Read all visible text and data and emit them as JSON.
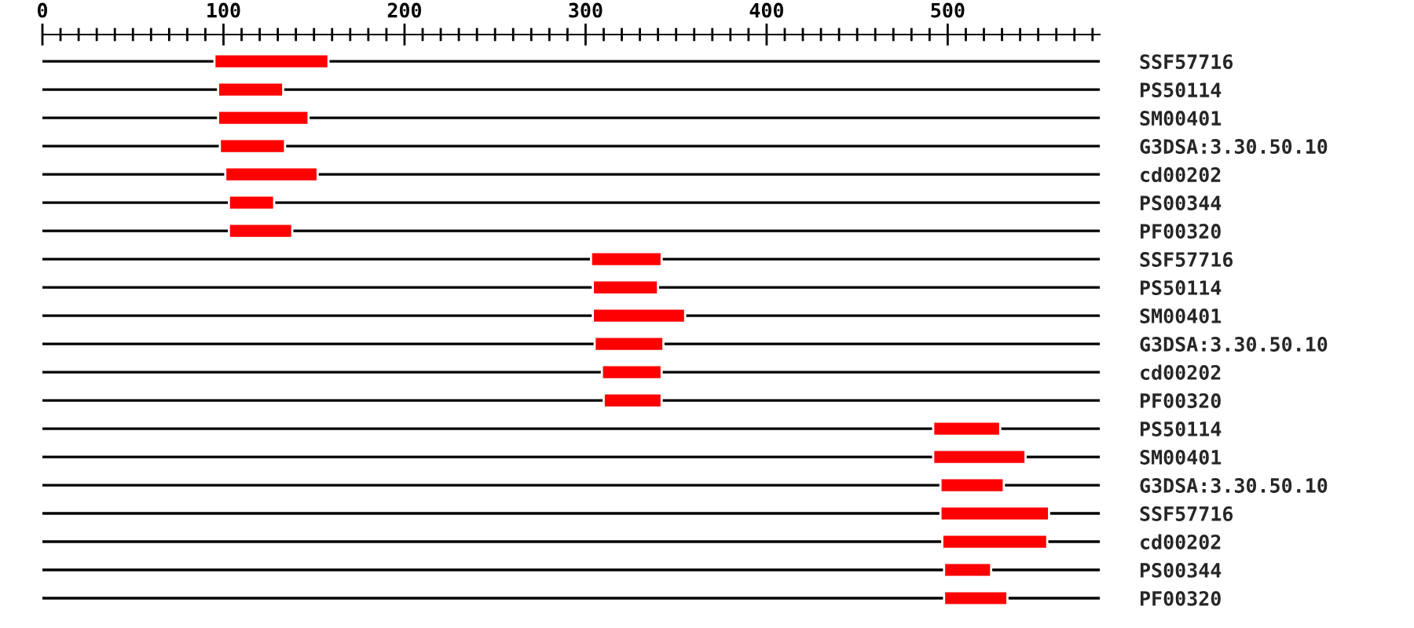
{
  "chart_data": {
    "type": "bar",
    "orientation": "horizontal",
    "categories": [
      "SSF57716",
      "PS50114",
      "SM00401",
      "G3DSA:3.30.50.10",
      "cd00202",
      "PS00344",
      "PF00320",
      "SSF57716",
      "PS50114",
      "SM00401",
      "G3DSA:3.30.50.10",
      "cd00202",
      "PF00320",
      "PS50114",
      "SM00401",
      "G3DSA:3.30.50.10",
      "SSF57716",
      "cd00202",
      "PS00344",
      "PF00320"
    ],
    "base": [
      95,
      97,
      97,
      98,
      101,
      103,
      103,
      303,
      304,
      304,
      305,
      309,
      310,
      492,
      492,
      496,
      496,
      497,
      498,
      498
    ],
    "values": [
      63,
      36,
      50,
      36,
      51,
      25,
      35,
      39,
      36,
      51,
      38,
      33,
      32,
      37,
      51,
      35,
      60,
      58,
      26,
      35
    ],
    "color": "#ff0000",
    "xlim": [
      0,
      584
    ],
    "xticks": [
      0,
      {
        "value": 10,
        "label": null
      },
      {
        "value": 20,
        "label": null
      },
      {
        "value": 30,
        "label": null
      },
      {
        "value": 40,
        "label": null
      },
      {
        "value": 50,
        "label": null
      },
      {
        "value": 60,
        "label": null
      },
      {
        "value": 70,
        "label": null
      },
      {
        "value": 80,
        "label": null
      },
      {
        "value": 90,
        "label": null
      },
      100,
      {
        "value": 110,
        "label": null
      },
      {
        "value": 120,
        "label": null
      },
      {
        "value": 130,
        "label": null
      },
      {
        "value": 140,
        "label": null
      },
      {
        "value": 150,
        "label": null
      },
      {
        "value": 160,
        "label": null
      },
      {
        "value": 170,
        "label": null
      },
      {
        "value": 180,
        "label": null
      },
      {
        "value": 190,
        "label": null
      },
      200,
      {
        "value": 210,
        "label": null
      },
      {
        "value": 220,
        "label": null
      },
      {
        "value": 230,
        "label": null
      },
      {
        "value": 240,
        "label": null
      },
      {
        "value": 250,
        "label": null
      },
      {
        "value": 260,
        "label": null
      },
      {
        "value": 270,
        "label": null
      },
      {
        "value": 280,
        "label": null
      },
      {
        "value": 290,
        "label": null
      },
      300,
      {
        "value": 310,
        "label": null
      },
      {
        "value": 320,
        "label": null
      },
      {
        "value": 330,
        "label": null
      },
      {
        "value": 340,
        "label": null
      },
      {
        "value": 350,
        "label": null
      },
      {
        "value": 360,
        "label": null
      },
      {
        "value": 370,
        "label": null
      },
      {
        "value": 380,
        "label": null
      },
      {
        "value": 390,
        "label": null
      },
      400,
      {
        "value": 410,
        "label": null
      },
      {
        "value": 420,
        "label": null
      },
      {
        "value": 430,
        "label": null
      },
      {
        "value": 440,
        "label": null
      },
      {
        "value": 450,
        "label": null
      },
      {
        "value": 460,
        "label": null
      },
      {
        "value": 470,
        "label": null
      },
      {
        "value": 480,
        "label": null
      },
      {
        "value": 490,
        "label": null
      },
      500,
      {
        "value": 510,
        "label": null
      },
      {
        "value": 520,
        "label": null
      },
      {
        "value": 530,
        "label": null
      },
      {
        "value": 540,
        "label": null
      },
      {
        "value": 550,
        "label": null
      },
      {
        "value": 560,
        "label": null
      },
      {
        "value": 570,
        "label": null
      },
      {
        "value": 580,
        "label": null
      }
    ],
    "grid": "y",
    "legend": false
  }
}
